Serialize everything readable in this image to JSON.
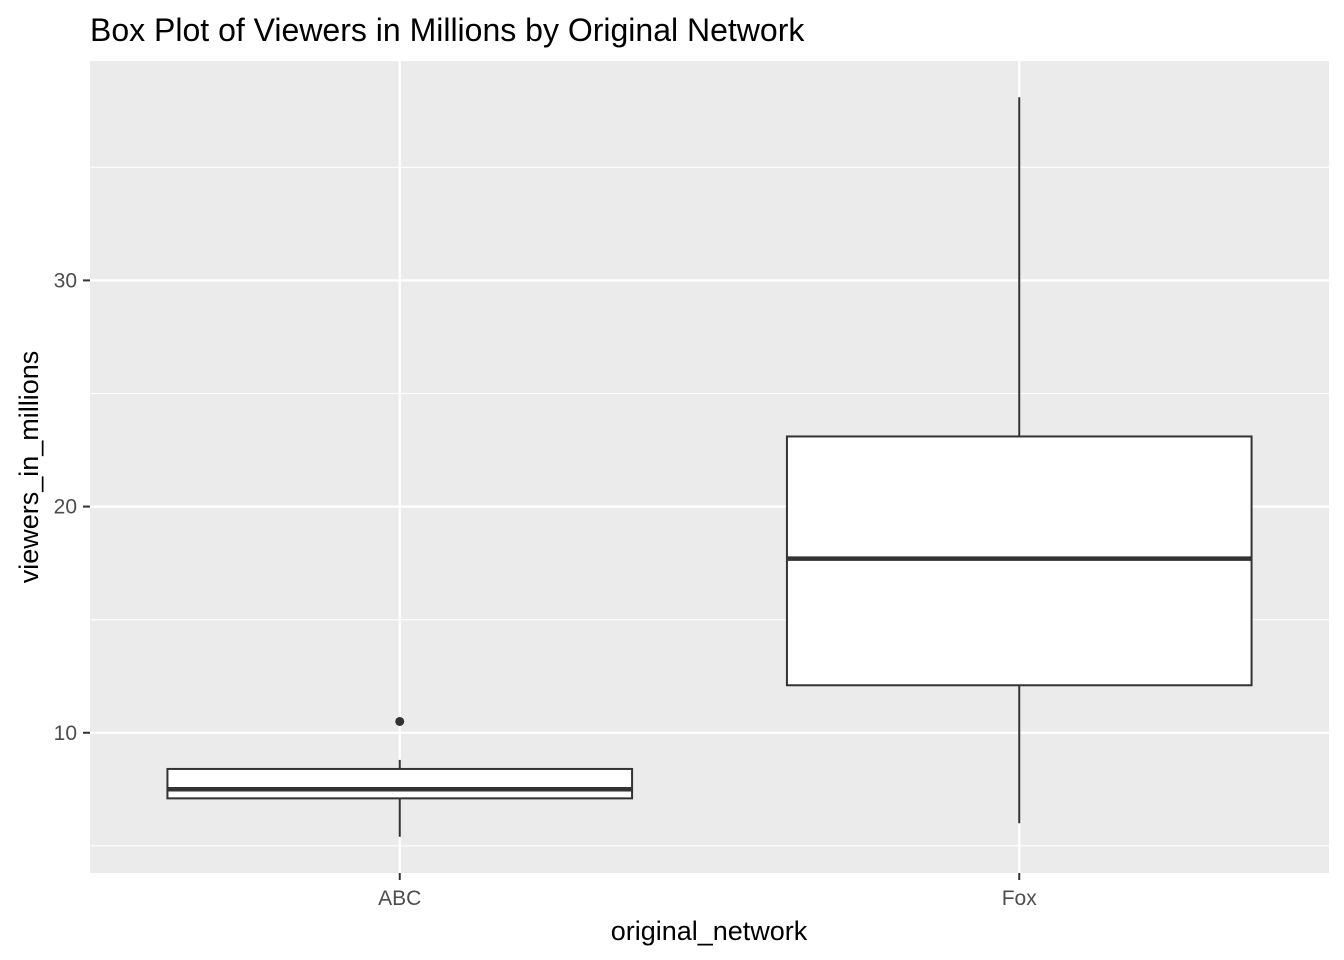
{
  "chart_data": {
    "type": "boxplot",
    "title": "Box Plot of Viewers in Millions by Original Network",
    "xlabel": "original_network",
    "ylabel": "viewers_in_millions",
    "categories": [
      "ABC",
      "Fox"
    ],
    "boxes": [
      {
        "category": "ABC",
        "whisker_low": 5.4,
        "q1": 7.1,
        "median": 7.5,
        "q3": 8.4,
        "whisker_high": 8.8,
        "outliers": [
          10.5
        ]
      },
      {
        "category": "Fox",
        "whisker_low": 6.0,
        "q1": 12.1,
        "median": 17.7,
        "q3": 23.1,
        "whisker_high": 38.1,
        "outliers": []
      }
    ],
    "ylim": [
      3.8,
      39.7
    ],
    "y_major_ticks": [
      10,
      20,
      30
    ],
    "y_tick_labels": [
      "10",
      "20",
      "30"
    ],
    "y_minor_ticks": [
      5,
      15,
      25,
      35
    ],
    "grid": true,
    "colors": {
      "panel": "#ebebeb",
      "grid": "#ffffff",
      "box_fill": "#ffffff",
      "box_line": "#333333",
      "tick_text": "#4d4d4d"
    }
  }
}
